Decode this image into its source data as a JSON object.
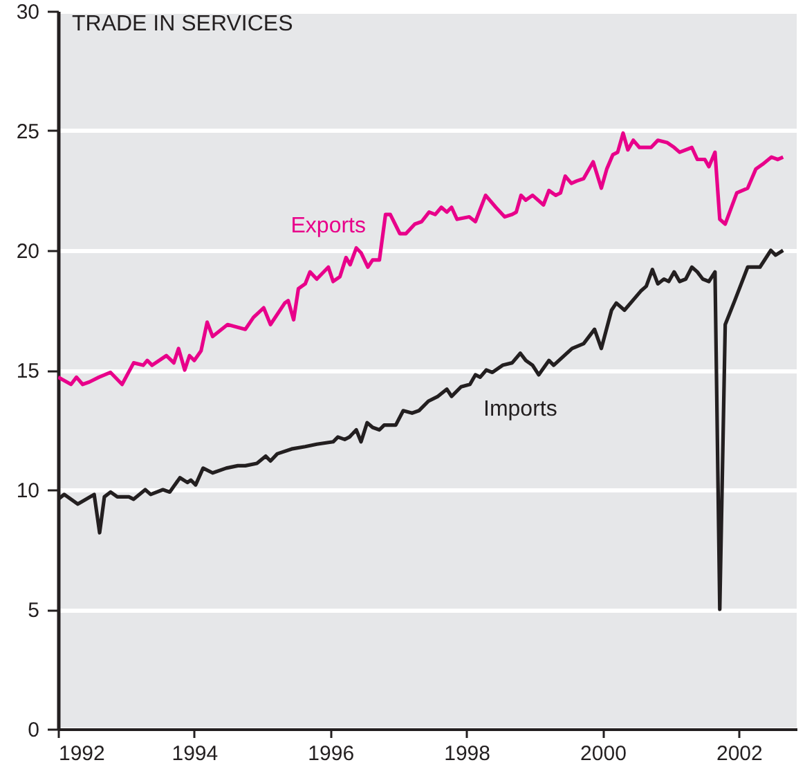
{
  "chart_data": {
    "type": "line",
    "title": "TRADE IN SERVICES",
    "xlim": [
      1992,
      2002.85
    ],
    "xticks": [
      1992,
      1994,
      1996,
      1998,
      2000,
      2002
    ],
    "ylim": [
      0,
      30
    ],
    "yticks": [
      0,
      5,
      10,
      15,
      20,
      25,
      30
    ],
    "grid": "y",
    "legend": false,
    "series": [
      {
        "name": "Exports",
        "color": "#e8008a",
        "x": [
          1992.0,
          1992.19,
          1992.27,
          1992.36,
          1992.46,
          1992.6,
          1992.77,
          1992.94,
          1993.11,
          1993.25,
          1993.31,
          1993.38,
          1993.59,
          1993.7,
          1993.77,
          1993.86,
          1993.93,
          1994.0,
          1994.1,
          1994.19,
          1994.27,
          1994.49,
          1994.75,
          1994.87,
          1995.02,
          1995.12,
          1995.33,
          1995.38,
          1995.46,
          1995.53,
          1995.63,
          1995.7,
          1995.8,
          1995.97,
          1996.04,
          1996.14,
          1996.23,
          1996.29,
          1996.38,
          1996.45,
          1996.55,
          1996.62,
          1996.72,
          1996.81,
          1996.88,
          1997.02,
          1997.11,
          1997.24,
          1997.34,
          1997.45,
          1997.54,
          1997.63,
          1997.71,
          1997.78,
          1997.86,
          1998.04,
          1998.13,
          1998.28,
          1998.43,
          1998.56,
          1998.67,
          1998.73,
          1998.8,
          1998.87,
          1998.97,
          1999.13,
          1999.21,
          1999.31,
          1999.38,
          1999.45,
          1999.54,
          1999.62,
          1999.72,
          1999.86,
          1999.98,
          2000.06,
          2000.15,
          2000.22,
          2000.3,
          2000.37,
          2000.45,
          2000.54,
          2000.71,
          2000.81,
          2000.95,
          2001.05,
          2001.13,
          2001.31,
          2001.39,
          2001.5,
          2001.56,
          2001.65,
          2001.72,
          2001.8,
          2001.97,
          2002.13,
          2002.25,
          2002.35,
          2002.48,
          2002.57,
          2002.65
        ],
        "values": [
          14.7,
          14.4,
          14.7,
          14.4,
          14.5,
          14.7,
          14.9,
          14.4,
          15.3,
          15.2,
          15.4,
          15.2,
          15.6,
          15.3,
          15.9,
          15.0,
          15.6,
          15.4,
          15.8,
          17.0,
          16.4,
          16.9,
          16.7,
          17.2,
          17.6,
          16.9,
          17.8,
          17.9,
          17.1,
          18.4,
          18.6,
          19.1,
          18.8,
          19.3,
          18.7,
          18.9,
          19.7,
          19.4,
          20.1,
          19.9,
          19.3,
          19.6,
          19.6,
          21.5,
          21.5,
          20.7,
          20.7,
          21.1,
          21.2,
          21.6,
          21.5,
          21.8,
          21.6,
          21.8,
          21.3,
          21.4,
          21.2,
          22.3,
          21.8,
          21.4,
          21.5,
          21.6,
          22.3,
          22.1,
          22.3,
          21.9,
          22.5,
          22.3,
          22.4,
          23.1,
          22.8,
          22.9,
          23.0,
          23.7,
          22.6,
          23.4,
          24.0,
          24.1,
          24.9,
          24.2,
          24.6,
          24.3,
          24.3,
          24.6,
          24.5,
          24.3,
          24.1,
          24.3,
          23.8,
          23.8,
          23.5,
          24.1,
          21.3,
          21.1,
          22.4,
          22.6,
          23.4,
          23.6,
          23.9,
          23.8,
          23.9
        ]
      },
      {
        "name": "Imports",
        "color": "#231f20",
        "x": [
          1992.0,
          1992.09,
          1992.29,
          1992.53,
          1992.61,
          1992.68,
          1992.77,
          1992.87,
          1993.04,
          1993.11,
          1993.28,
          1993.36,
          1993.54,
          1993.64,
          1993.79,
          1993.9,
          1993.95,
          1994.02,
          1994.13,
          1994.27,
          1994.47,
          1994.64,
          1994.75,
          1994.92,
          1995.05,
          1995.12,
          1995.22,
          1995.43,
          1995.63,
          1995.8,
          1996.04,
          1996.11,
          1996.21,
          1996.28,
          1996.38,
          1996.45,
          1996.54,
          1996.62,
          1996.72,
          1996.79,
          1996.96,
          1997.07,
          1997.2,
          1997.3,
          1997.44,
          1997.58,
          1997.71,
          1997.78,
          1997.92,
          1998.05,
          1998.13,
          1998.2,
          1998.29,
          1998.38,
          1998.53,
          1998.67,
          1998.79,
          1998.87,
          1998.97,
          1999.06,
          1999.21,
          1999.28,
          1999.55,
          1999.72,
          1999.88,
          1999.98,
          2000.13,
          2000.2,
          2000.32,
          2000.56,
          2000.64,
          2000.73,
          2000.81,
          2000.9,
          2000.97,
          2001.05,
          2001.13,
          2001.22,
          2001.31,
          2001.39,
          2001.47,
          2001.56,
          2001.65,
          2001.72,
          2001.8,
          2001.94,
          2002.13,
          2002.31,
          2002.47,
          2002.54,
          2002.65
        ],
        "values": [
          9.6,
          9.8,
          9.4,
          9.8,
          8.2,
          9.7,
          9.9,
          9.7,
          9.7,
          9.6,
          10.0,
          9.8,
          10.0,
          9.9,
          10.5,
          10.3,
          10.4,
          10.2,
          10.9,
          10.7,
          10.9,
          11.0,
          11.0,
          11.1,
          11.4,
          11.2,
          11.5,
          11.7,
          11.8,
          11.9,
          12.0,
          12.2,
          12.1,
          12.2,
          12.5,
          12.0,
          12.8,
          12.6,
          12.5,
          12.7,
          12.7,
          13.3,
          13.2,
          13.3,
          13.7,
          13.9,
          14.2,
          13.9,
          14.3,
          14.4,
          14.8,
          14.7,
          15.0,
          14.9,
          15.2,
          15.3,
          15.7,
          15.4,
          15.2,
          14.8,
          15.4,
          15.2,
          15.9,
          16.1,
          16.7,
          15.9,
          17.5,
          17.8,
          17.5,
          18.3,
          18.5,
          19.2,
          18.6,
          18.8,
          18.7,
          19.1,
          18.7,
          18.8,
          19.3,
          19.1,
          18.8,
          18.7,
          19.1,
          5.0,
          16.9,
          17.9,
          19.3,
          19.3,
          20.0,
          19.8,
          20.0
        ]
      }
    ]
  }
}
